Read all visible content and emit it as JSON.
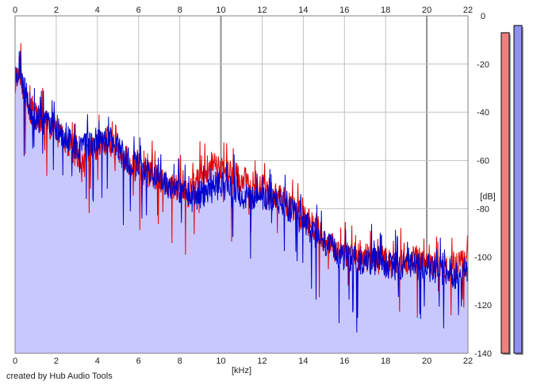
{
  "credit": "created by Hub Audio Tools",
  "colors": {
    "plot_background": "#ffffff",
    "fill": "#c8c8ff",
    "grid": "#c0c0c0",
    "grid_major": "#909090",
    "channel_red": "#e00000",
    "channel_blue": "#0000cc",
    "meter_red": "#f08080",
    "meter_blue": "#9090f0"
  },
  "chart_data": {
    "type": "line",
    "title": "",
    "xlabel": "[kHz]",
    "ylabel": "[dB]",
    "xlim": [
      0,
      22
    ],
    "ylim": [
      -140,
      0
    ],
    "x_ticks": [
      "0",
      "2",
      "4",
      "6",
      "8",
      "10",
      "12",
      "14",
      "16",
      "18",
      "20",
      "22"
    ],
    "y_ticks": [
      "0",
      "-20",
      "-40",
      "-60",
      "-80",
      "-100",
      "-120",
      "-140"
    ],
    "grid": true,
    "series": [
      {
        "color": "#e00000",
        "x": [
          0,
          0.2,
          0.4,
          0.6,
          0.8,
          1,
          1.5,
          2,
          2.5,
          3,
          3.25,
          3.5,
          4,
          4.5,
          5,
          5.5,
          6,
          6.5,
          7,
          7.5,
          8,
          8.5,
          9,
          9.5,
          10,
          10.5,
          11,
          11.5,
          12,
          12.5,
          13,
          13.5,
          14,
          14.5,
          15,
          15.5,
          16,
          16.5,
          17,
          17.5,
          18,
          18.5,
          19,
          19.5,
          20,
          20.5,
          21,
          21.5,
          22
        ],
        "y": [
          -30,
          -22,
          -30,
          -36,
          -40,
          -42,
          -44,
          -48,
          -52,
          -58,
          -64,
          -58,
          -54,
          -52,
          -56,
          -60,
          -64,
          -66,
          -68,
          -70,
          -72,
          -74,
          -66,
          -62,
          -64,
          -66,
          -68,
          -70,
          -70,
          -74,
          -76,
          -80,
          -84,
          -88,
          -92,
          -96,
          -98,
          -100,
          -100,
          -101,
          -102,
          -104,
          -102,
          -100,
          -104,
          -104,
          -106,
          -104,
          -102
        ]
      },
      {
        "color": "#0000cc",
        "x": [
          0,
          0.2,
          0.4,
          0.6,
          0.8,
          1,
          1.5,
          2,
          2.5,
          3,
          3.5,
          4,
          4.5,
          5,
          5.5,
          6,
          6.5,
          7,
          7.5,
          8,
          8.5,
          9,
          9.5,
          10,
          10.5,
          11,
          11.5,
          12,
          12.5,
          13,
          13.5,
          14,
          14.5,
          15,
          15.5,
          16,
          16.5,
          17,
          17.5,
          18,
          18.5,
          19,
          19.5,
          20,
          20.5,
          21,
          21.5,
          22
        ],
        "y": [
          -28,
          -20,
          -28,
          -34,
          -40,
          -42,
          -44,
          -46,
          -50,
          -54,
          -54,
          -52,
          -50,
          -54,
          -60,
          -62,
          -66,
          -68,
          -70,
          -72,
          -76,
          -74,
          -72,
          -70,
          -72,
          -74,
          -76,
          -76,
          -76,
          -78,
          -82,
          -86,
          -90,
          -94,
          -98,
          -100,
          -101,
          -102,
          -102,
          -103,
          -104,
          -104,
          -104,
          -104,
          -106,
          -106,
          -108,
          -106
        ]
      }
    ],
    "level_meters": [
      {
        "color": "#f08080",
        "level_db": -7
      },
      {
        "color": "#9090f0",
        "level_db": -4
      }
    ]
  }
}
